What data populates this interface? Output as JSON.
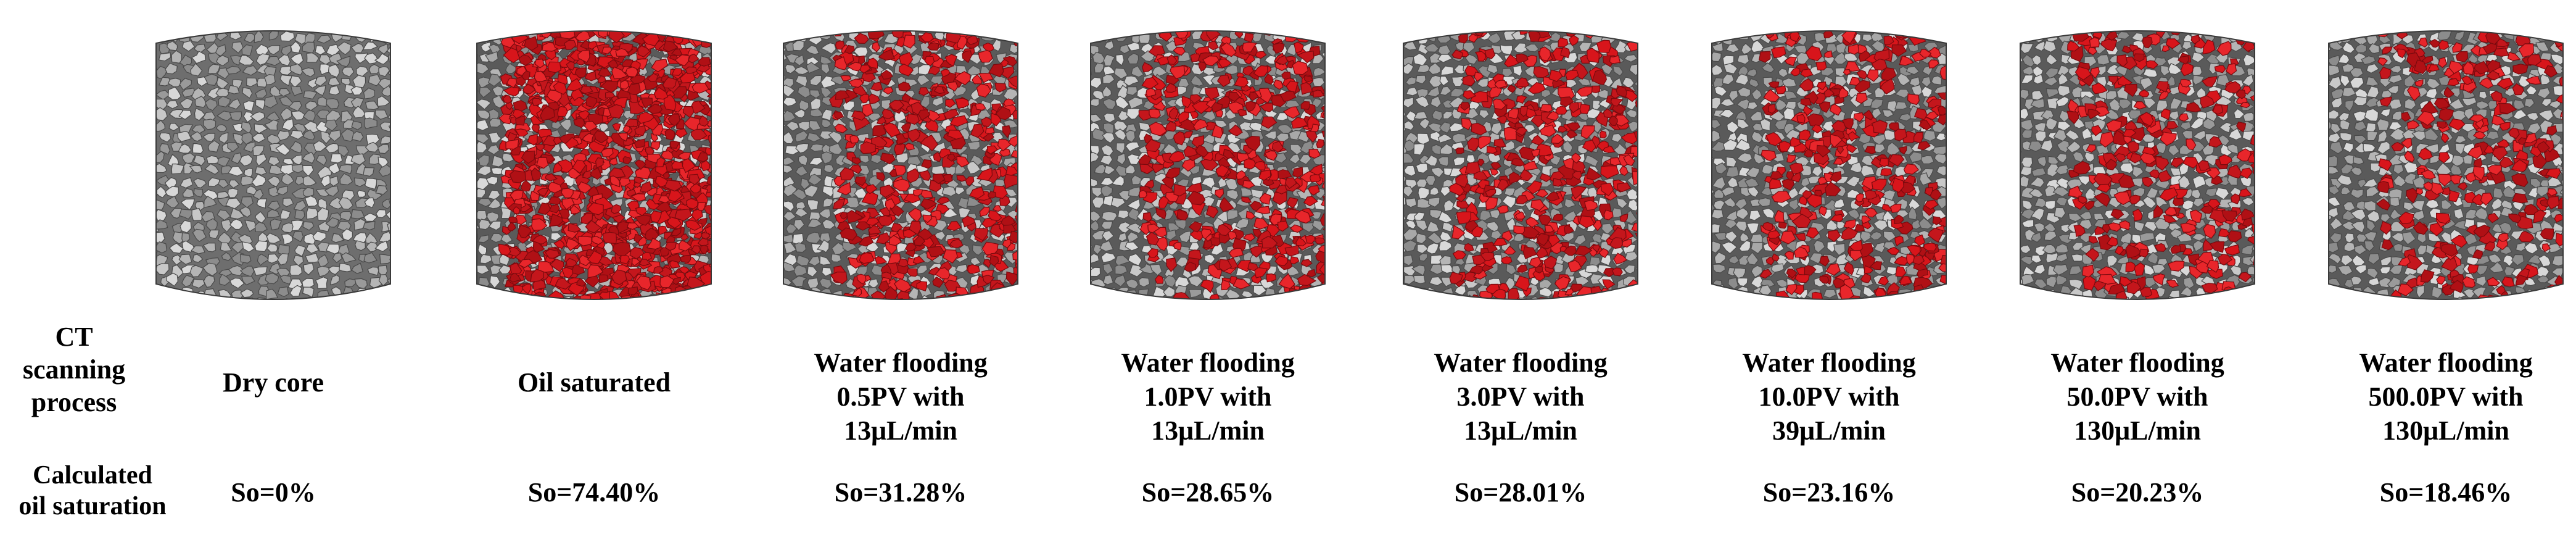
{
  "row_labels": {
    "process": [
      "CT",
      "scanning",
      "process"
    ],
    "saturation": [
      "Calculated",
      "oil saturation"
    ]
  },
  "samples": [
    {
      "lines": [
        "Dry core"
      ],
      "so": "So=0%",
      "oil_fraction": 0
    },
    {
      "lines": [
        "Oil saturated"
      ],
      "so": "So=74.40%",
      "oil_fraction": 0.744
    },
    {
      "lines": [
        "Water flooding",
        "0.5PV with",
        "13μL/min"
      ],
      "so": "So=31.28%",
      "oil_fraction": 0.3128
    },
    {
      "lines": [
        "Water flooding",
        "1.0PV with",
        "13μL/min"
      ],
      "so": "So=28.65%",
      "oil_fraction": 0.2865
    },
    {
      "lines": [
        "Water flooding",
        "3.0PV with",
        "13μL/min"
      ],
      "so": "So=28.01%",
      "oil_fraction": 0.2801
    },
    {
      "lines": [
        "Water flooding",
        "10.0PV with",
        "39μL/min"
      ],
      "so": "So=23.16%",
      "oil_fraction": 0.2316
    },
    {
      "lines": [
        "Water flooding",
        "50.0PV with",
        "130μL/min"
      ],
      "so": "So=20.23%",
      "oil_fraction": 0.2023
    },
    {
      "lines": [
        "Water flooding",
        "500.0PV with",
        "130μL/min"
      ],
      "so": "So=18.46%",
      "oil_fraction": 0.1846
    }
  ],
  "colors": {
    "oil": "#d8151b",
    "rock": "#8c8c8c",
    "rock_dark": "#4a4a4a",
    "rock_light": "#c8c8c8"
  }
}
